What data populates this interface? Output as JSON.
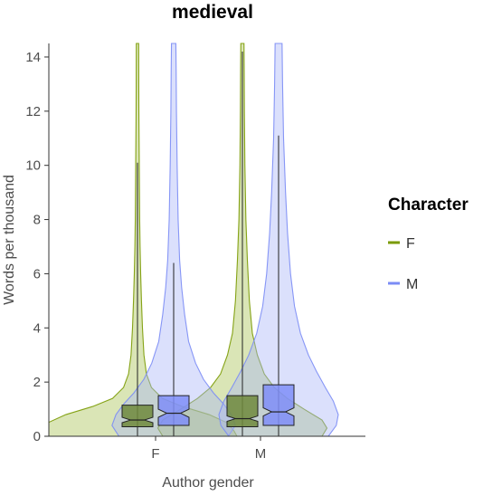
{
  "chart_data": {
    "type": "violin",
    "title": "medieval",
    "xlabel": "Author gender",
    "ylabel": "Words per thousand",
    "categories": [
      "F",
      "M"
    ],
    "ylim": [
      0,
      14.5
    ],
    "yticks": [
      0,
      2,
      4,
      6,
      8,
      10,
      12,
      14
    ],
    "legend": {
      "title": "Character",
      "position": "right",
      "entries": [
        {
          "name": "F",
          "color": "#7a9a01"
        },
        {
          "name": "M",
          "color": "#7b8cf5"
        }
      ]
    },
    "series": [
      {
        "name": "F",
        "color": "#7a9a01",
        "fill": "#a8c050",
        "groups": [
          {
            "category": "F",
            "box": {
              "q1": 0.35,
              "median": 0.6,
              "q3": 1.15,
              "notch_low": 0.5,
              "notch_high": 0.7,
              "whisker_low": 0.0,
              "whisker_high": 10.1
            },
            "density": [
              [
                0,
                1.0
              ],
              [
                0.2,
                0.97
              ],
              [
                0.5,
                0.9
              ],
              [
                0.8,
                0.72
              ],
              [
                1.1,
                0.45
              ],
              [
                1.4,
                0.25
              ],
              [
                1.8,
                0.14
              ],
              [
                2.3,
                0.09
              ],
              [
                3,
                0.065
              ],
              [
                4,
                0.05
              ],
              [
                5,
                0.04
              ],
              [
                6,
                0.032
              ],
              [
                7,
                0.026
              ],
              [
                8,
                0.022
              ],
              [
                9,
                0.02
              ],
              [
                10,
                0.018
              ],
              [
                11,
                0.016
              ],
              [
                12,
                0.014
              ],
              [
                13,
                0.013
              ],
              [
                14.5,
                0.012
              ]
            ]
          },
          {
            "category": "M",
            "box": {
              "q1": 0.35,
              "median": 0.65,
              "q3": 1.5,
              "notch_low": 0.55,
              "notch_high": 0.75,
              "whisker_low": 0.0,
              "whisker_high": 14.2
            },
            "density": [
              [
                0,
                0.8
              ],
              [
                0.3,
                0.85
              ],
              [
                0.6,
                0.8
              ],
              [
                1,
                0.62
              ],
              [
                1.4,
                0.45
              ],
              [
                1.8,
                0.32
              ],
              [
                2.3,
                0.22
              ],
              [
                3,
                0.15
              ],
              [
                3.8,
                0.1
              ],
              [
                5,
                0.07
              ],
              [
                6.5,
                0.05
              ],
              [
                8,
                0.035
              ],
              [
                10,
                0.025
              ],
              [
                12,
                0.02
              ],
              [
                13.5,
                0.018
              ],
              [
                14.5,
                0.016
              ]
            ]
          }
        ]
      },
      {
        "name": "M",
        "color": "#7b8cf5",
        "fill": "#a9b4f8",
        "groups": [
          {
            "category": "F",
            "box": {
              "q1": 0.4,
              "median": 0.85,
              "q3": 1.5,
              "notch_low": 0.7,
              "notch_high": 1.0,
              "whisker_low": 0.0,
              "whisker_high": 6.4
            },
            "density": [
              [
                0,
                0.55
              ],
              [
                0.4,
                0.62
              ],
              [
                0.8,
                0.58
              ],
              [
                1.2,
                0.5
              ],
              [
                1.6,
                0.4
              ],
              [
                2.1,
                0.3
              ],
              [
                2.7,
                0.22
              ],
              [
                3.5,
                0.15
              ],
              [
                4.5,
                0.11
              ],
              [
                5.5,
                0.08
              ],
              [
                6.5,
                0.06
              ],
              [
                8,
                0.045
              ],
              [
                10,
                0.035
              ],
              [
                12,
                0.028
              ],
              [
                13.5,
                0.025
              ],
              [
                14.5,
                0.022
              ]
            ]
          },
          {
            "category": "M",
            "box": {
              "q1": 0.4,
              "median": 0.9,
              "q3": 1.9,
              "notch_low": 0.75,
              "notch_high": 1.05,
              "whisker_low": 0.0,
              "whisker_high": 11.1
            },
            "density": [
              [
                0,
                0.5
              ],
              [
                0.4,
                0.58
              ],
              [
                0.8,
                0.6
              ],
              [
                1.3,
                0.55
              ],
              [
                1.8,
                0.47
              ],
              [
                2.4,
                0.38
              ],
              [
                3,
                0.3
              ],
              [
                3.8,
                0.22
              ],
              [
                4.8,
                0.16
              ],
              [
                6,
                0.12
              ],
              [
                7.5,
                0.09
              ],
              [
                9,
                0.07
              ],
              [
                11,
                0.05
              ],
              [
                13,
                0.04
              ],
              [
                14.5,
                0.035
              ]
            ]
          }
        ]
      }
    ]
  }
}
